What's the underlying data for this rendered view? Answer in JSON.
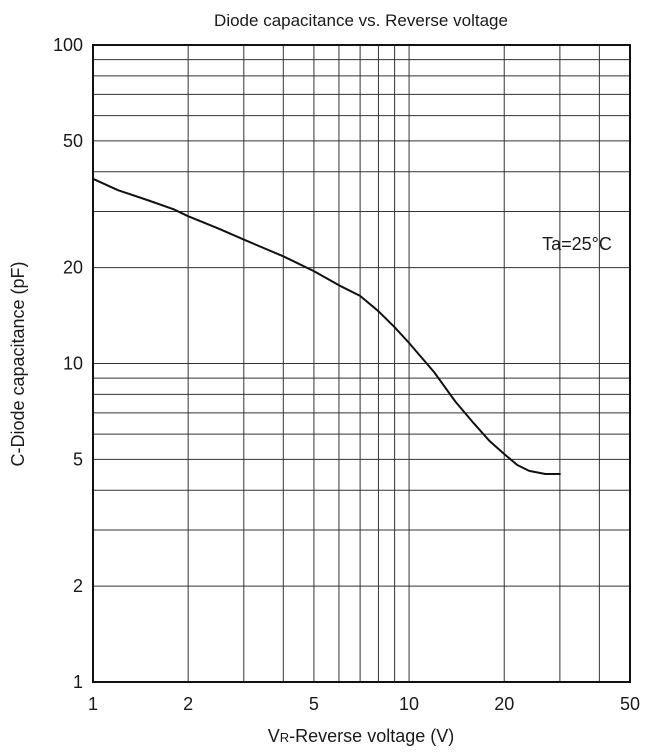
{
  "chart_data": {
    "type": "line",
    "title": "Diode capacitance vs. Reverse voltage",
    "xlabel_prefix": "V",
    "xlabel_sub": "R",
    "xlabel_rest": "-Reverse voltage (V)",
    "ylabel": "C-Diode capacitance (pF)",
    "x_scale": "log",
    "y_scale": "log",
    "xlim": [
      1,
      50
    ],
    "ylim": [
      1,
      100
    ],
    "x_ticks": [
      1,
      2,
      5,
      10,
      20,
      50
    ],
    "x_tick_labels": [
      "1",
      "2",
      "5",
      "10",
      "20",
      "50"
    ],
    "y_ticks": [
      1,
      2,
      5,
      10,
      20,
      50,
      100
    ],
    "y_tick_labels": [
      "1",
      "2",
      "5",
      "10",
      "20",
      "50",
      "100"
    ],
    "grid": true,
    "annotation": "Ta=25°C",
    "series": [
      {
        "x": [
          1,
          1.2,
          1.5,
          1.8,
          2,
          2.5,
          3,
          4,
          5,
          6,
          7,
          8,
          9,
          10,
          12,
          14,
          16,
          18,
          20,
          22,
          24,
          27,
          30
        ],
        "y": [
          38,
          35,
          32.5,
          30.5,
          29,
          26.5,
          24.5,
          21.7,
          19.5,
          17.6,
          16.3,
          14.6,
          13,
          11.6,
          9.4,
          7.6,
          6.5,
          5.7,
          5.2,
          4.8,
          4.6,
          4.5,
          4.5
        ]
      }
    ],
    "colors": {
      "line": "#111111",
      "grid": "#333333",
      "frame": "#111111"
    }
  }
}
